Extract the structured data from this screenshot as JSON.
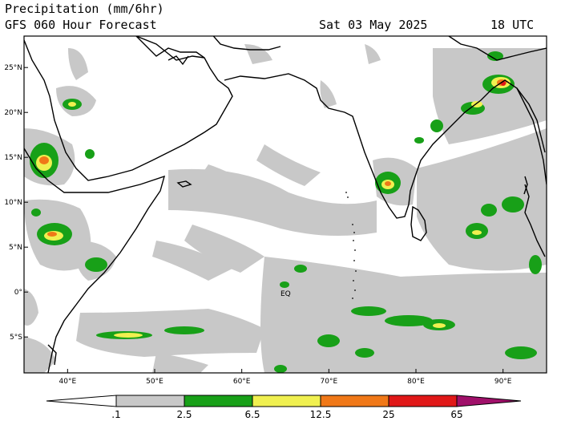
{
  "header": {
    "title": "Precipitation (mm/6hr)",
    "forecast": "GFS 060 Hour Forecast",
    "date": "Sat 03 May 2025",
    "time": "18 UTC"
  },
  "map": {
    "region": "Arabian Sea / Indian Ocean",
    "lon_range": [
      35,
      95
    ],
    "lat_range": [
      -9,
      28.5
    ],
    "lon_labels": [
      "40°E",
      "50°E",
      "60°E",
      "70°E",
      "80°E",
      "90°E"
    ],
    "lat_labels": [
      "25°N",
      "20°N",
      "15°N",
      "10°N",
      "5°N",
      "0°",
      "5°S"
    ],
    "equator_label": "EQ"
  },
  "colorbar": {
    "unit": "mm/6hr",
    "thresholds": [
      ".1",
      "2.5",
      "6.5",
      "12.5",
      "25",
      "65"
    ],
    "colors": [
      "#c8c8c8",
      "#18a018",
      "#f0f050",
      "#f07818",
      "#e01818",
      "#a0106a"
    ]
  }
}
